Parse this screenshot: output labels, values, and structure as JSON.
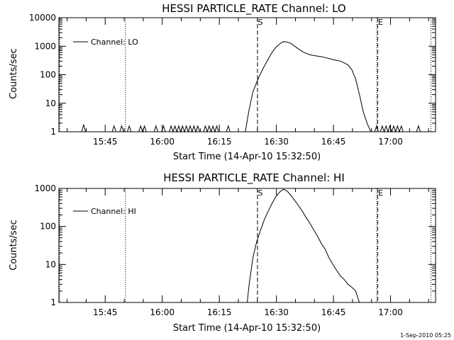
{
  "chart_data": [
    {
      "type": "line",
      "title": "HESSI PARTICLE_RATE Channel: LO",
      "xlabel": "Start Time (14-Apr-10 15:32:50)",
      "ylabel": "Counts/sec",
      "y_scale": "log",
      "ylim": [
        1,
        10000
      ],
      "y_ticks": [
        1,
        10,
        100,
        1000,
        10000
      ],
      "y_tick_labels": [
        "1",
        "10",
        "100",
        "1000",
        "10000"
      ],
      "xlim_minutes": [
        0,
        99
      ],
      "x_tick_minutes": [
        12.17,
        27.17,
        42.17,
        57.17,
        72.17,
        87.17
      ],
      "x_tick_labels": [
        "15:45",
        "16:00",
        "16:15",
        "16:30",
        "16:45",
        "17:00"
      ],
      "legend": "Channel: LO",
      "legend_position": "top-left",
      "markers": [
        {
          "label": "S",
          "x": 52.2,
          "style": "dashed"
        },
        {
          "label": "E",
          "x": 83.8,
          "style": "dashed"
        },
        {
          "label": "",
          "x": 0.2,
          "style": "dotted"
        },
        {
          "label": "",
          "x": 17.5,
          "style": "dotted"
        },
        {
          "label": "",
          "x": 83.5,
          "style": "dotted"
        },
        {
          "label": "",
          "x": 97.8,
          "style": "dotted"
        }
      ],
      "series": [
        {
          "x": [
            0,
            6,
            6.5,
            7,
            14,
            14.5,
            15,
            16,
            16.5,
            17,
            18,
            18.5,
            19,
            21,
            21.5,
            22,
            22.5,
            23,
            25,
            25.5,
            26,
            27,
            27.5,
            28,
            29,
            29.5,
            30,
            30.5,
            31,
            31.5,
            32,
            32.5,
            33,
            33.5,
            34,
            34.5,
            35,
            35.5,
            36,
            36.5,
            37,
            38,
            38.5,
            39,
            39.5,
            40,
            40.5,
            41,
            41.5,
            42,
            44,
            44.5,
            45,
            49,
            50,
            51,
            52,
            53,
            54,
            55,
            56,
            57,
            58,
            59,
            60,
            61,
            62,
            63,
            64,
            65,
            66,
            67,
            68,
            69,
            70,
            71,
            72,
            73,
            74,
            75,
            76,
            77,
            78,
            79,
            80,
            81,
            82,
            82.5,
            83,
            83.5,
            84,
            84.5,
            85,
            85.5,
            86,
            86.5,
            87,
            87.5,
            88,
            88.5,
            89,
            89.5,
            90,
            90.5,
            91,
            94,
            94.5,
            95,
            99
          ],
          "values": [
            1,
            1,
            1.8,
            1,
            1,
            1.6,
            1,
            1,
            1.6,
            1,
            1,
            1.6,
            1,
            1,
            1.6,
            1,
            1.6,
            1,
            1,
            1.6,
            1,
            1,
            1.6,
            1,
            1,
            1.6,
            1,
            1.6,
            1,
            1.6,
            1,
            1.6,
            1,
            1.6,
            1,
            1.6,
            1,
            1.6,
            1,
            1.6,
            1,
            1,
            1.6,
            1,
            1.6,
            1,
            1.6,
            1,
            1.6,
            1,
            1,
            1.6,
            1,
            1,
            6,
            25,
            55,
            110,
            200,
            350,
            600,
            900,
            1200,
            1450,
            1400,
            1250,
            1000,
            800,
            650,
            560,
            500,
            470,
            450,
            430,
            400,
            370,
            340,
            320,
            300,
            260,
            220,
            150,
            70,
            20,
            5,
            2,
            1,
            1,
            1,
            1.6,
            1,
            1,
            1.6,
            1,
            1.6,
            1,
            1.6,
            1,
            1.6,
            1,
            1.6,
            1,
            1.6,
            1,
            1,
            1,
            1.6,
            1,
            1
          ]
        }
      ]
    },
    {
      "type": "line",
      "title": "HESSI PARTICLE_RATE Channel: HI",
      "xlabel": "Start Time (14-Apr-10 15:32:50)",
      "ylabel": "Counts/sec",
      "y_scale": "log",
      "ylim": [
        1,
        1000
      ],
      "y_ticks": [
        1,
        10,
        100,
        1000
      ],
      "y_tick_labels": [
        "1",
        "10",
        "100",
        "1000"
      ],
      "xlim_minutes": [
        0,
        99
      ],
      "x_tick_minutes": [
        12.17,
        27.17,
        42.17,
        57.17,
        72.17,
        87.17
      ],
      "x_tick_labels": [
        "15:45",
        "16:00",
        "16:15",
        "16:30",
        "16:45",
        "17:00"
      ],
      "legend": "Channel: HI",
      "legend_position": "top-left",
      "markers": [
        {
          "label": "S",
          "x": 52.2,
          "style": "dashed"
        },
        {
          "label": "E",
          "x": 83.8,
          "style": "dashed"
        },
        {
          "label": "",
          "x": 0.2,
          "style": "dotted"
        },
        {
          "label": "",
          "x": 17.5,
          "style": "dotted"
        },
        {
          "label": "",
          "x": 83.5,
          "style": "dotted"
        },
        {
          "label": "",
          "x": 97.8,
          "style": "dotted"
        }
      ],
      "series": [
        {
          "x": [
            49.5,
            50,
            51,
            52,
            53,
            54,
            55,
            56,
            57,
            58,
            59,
            60,
            61,
            62,
            63,
            64,
            65,
            66,
            67,
            68,
            69,
            70,
            71,
            72,
            73,
            74,
            75,
            76,
            77,
            78,
            78.5,
            79
          ],
          "values": [
            1,
            3,
            15,
            40,
            80,
            150,
            250,
            400,
            600,
            800,
            950,
            850,
            650,
            480,
            350,
            250,
            170,
            120,
            80,
            55,
            35,
            25,
            15,
            10,
            7,
            5,
            4,
            3,
            2.5,
            2,
            1.4,
            1
          ]
        }
      ]
    },
    {
      "footer_stamp": "1-Sep-2010 05:25"
    }
  ]
}
